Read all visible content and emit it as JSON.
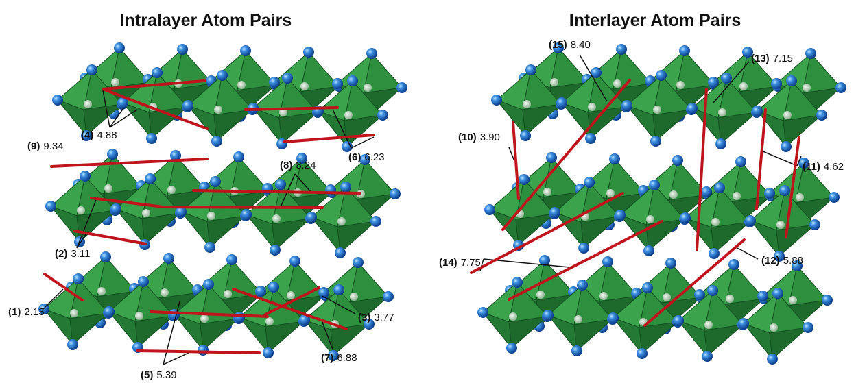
{
  "panels": [
    {
      "title": "Intralayer Atom Pairs",
      "pairs": [
        {
          "label": "(1)",
          "distance": "2.13"
        },
        {
          "label": "(2)",
          "distance": "3.11"
        },
        {
          "label": "(3)",
          "distance": "3.77"
        },
        {
          "label": "(4)",
          "distance": "4.88"
        },
        {
          "label": "(5)",
          "distance": "5.39"
        },
        {
          "label": "(6)",
          "distance": "6.23"
        },
        {
          "label": "(7)",
          "distance": "6.88"
        },
        {
          "label": "(8)",
          "distance": "8.24"
        },
        {
          "label": "(9)",
          "distance": "9.34"
        }
      ]
    },
    {
      "title": "Interlayer Atom Pairs",
      "pairs": [
        {
          "label": "(10)",
          "distance": "3.90"
        },
        {
          "label": "(11)",
          "distance": "4.62"
        },
        {
          "label": "(12)",
          "distance": "5.88"
        },
        {
          "label": "(13)",
          "distance": "7.15"
        },
        {
          "label": "(14)",
          "distance": "7.75"
        },
        {
          "label": "(15)",
          "distance": "8.40"
        }
      ]
    }
  ]
}
